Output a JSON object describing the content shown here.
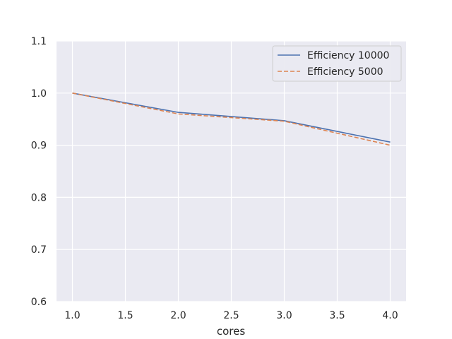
{
  "chart_data": {
    "type": "line",
    "title": "",
    "xlabel": "cores",
    "ylabel": "",
    "xlim": [
      0.85,
      4.15
    ],
    "ylim": [
      0.6,
      1.1
    ],
    "xticks": [
      1.0,
      1.5,
      2.0,
      2.5,
      3.0,
      3.5,
      4.0
    ],
    "xtick_labels": [
      "1.0",
      "1.5",
      "2.0",
      "2.5",
      "3.0",
      "3.5",
      "4.0"
    ],
    "yticks": [
      0.6,
      0.7,
      0.8,
      0.9,
      1.0,
      1.1
    ],
    "ytick_labels": [
      "0.6",
      "0.7",
      "0.8",
      "0.9",
      "1.0",
      "1.1"
    ],
    "grid": true,
    "legend_position": "top-right",
    "x": [
      1,
      2,
      3,
      4
    ],
    "series": [
      {
        "name": "Efficiency 10000",
        "values": [
          1.0,
          0.963,
          0.947,
          0.906
        ],
        "color": "#4c72b0",
        "style": "solid"
      },
      {
        "name": "Efficiency 5000",
        "values": [
          1.0,
          0.96,
          0.946,
          0.9
        ],
        "color": "#dd8452",
        "style": "dashed"
      }
    ]
  }
}
